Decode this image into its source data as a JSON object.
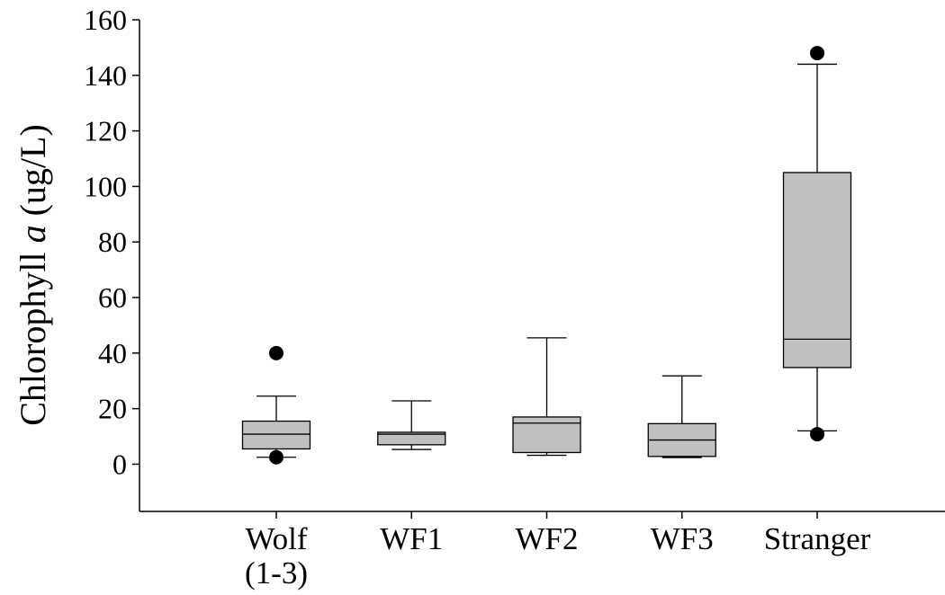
{
  "chart_data": {
    "type": "box",
    "ylabel_prefix": "Chlorophyll ",
    "ylabel_italic": "a",
    "ylabel_suffix": " (ug/L)",
    "xlabel": "",
    "ylim": [
      -17,
      160
    ],
    "yticks": [
      0,
      20,
      40,
      60,
      80,
      100,
      120,
      140,
      160
    ],
    "ytick_labels": [
      "0",
      "20",
      "40",
      "60",
      "80",
      "100",
      "120",
      "140",
      "160"
    ],
    "grid": false,
    "box_color": "#c0c0c0",
    "categories": [
      {
        "label_lines": [
          "Wolf",
          "(1-3)"
        ],
        "whisker_low": 2.5,
        "q1": 5.5,
        "median": 10.8,
        "q3": 15.5,
        "whisker_high": 24.5,
        "outliers": [
          40,
          2.5
        ]
      },
      {
        "label_lines": [
          "WF1"
        ],
        "whisker_low": 5.3,
        "q1": 7.0,
        "median": 10.8,
        "q3": 11.5,
        "whisker_high": 22.8,
        "outliers": []
      },
      {
        "label_lines": [
          "WF2"
        ],
        "whisker_low": 3.2,
        "q1": 4.2,
        "median": 14.8,
        "q3": 17.0,
        "whisker_high": 45.5,
        "outliers": []
      },
      {
        "label_lines": [
          "WF3"
        ],
        "whisker_low": 2.4,
        "q1": 2.8,
        "median": 8.7,
        "q3": 14.6,
        "whisker_high": 31.8,
        "outliers": []
      },
      {
        "label_lines": [
          "Stranger"
        ],
        "whisker_low": 12.0,
        "q1": 34.8,
        "median": 45.0,
        "q3": 105.0,
        "whisker_high": 144.0,
        "outliers": [
          148,
          10.8
        ]
      }
    ]
  }
}
